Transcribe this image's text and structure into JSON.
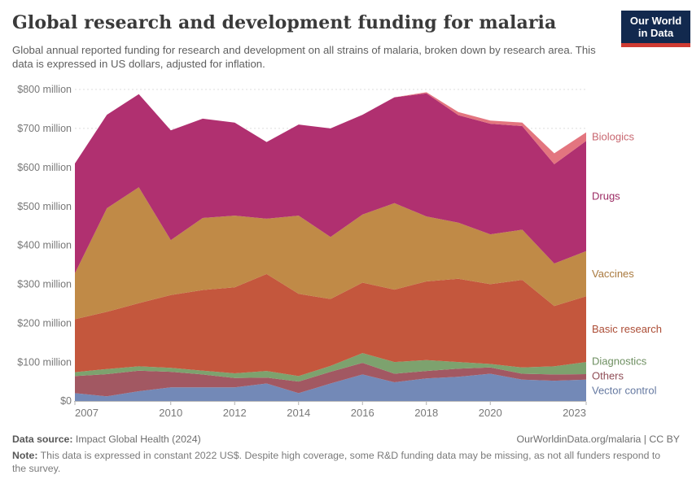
{
  "header": {
    "title": "Global research and development funding for malaria",
    "subtitle": "Global annual reported funding for research and development on all strains of malaria, broken down by research area. This data is expressed in US dollars, adjusted for inflation."
  },
  "logo": {
    "line1": "Our World",
    "line2": "in Data",
    "bg_color": "#12294e",
    "accent_color": "#cf3b32"
  },
  "chart_data": {
    "type": "area",
    "stacked": true,
    "title": "Global research and development funding for malaria",
    "xlabel": "",
    "ylabel": "",
    "xlim": [
      2007,
      2023
    ],
    "ylim": [
      0,
      800
    ],
    "grid": "dashed-horizontal",
    "legend_position": "right-of-plot",
    "x": [
      2007,
      2008,
      2009,
      2010,
      2011,
      2012,
      2013,
      2014,
      2015,
      2016,
      2017,
      2018,
      2019,
      2020,
      2021,
      2022,
      2023
    ],
    "x_ticks": [
      2007,
      2010,
      2012,
      2014,
      2016,
      2018,
      2020,
      2023
    ],
    "y_ticks": [
      {
        "v": 0,
        "label": "$0"
      },
      {
        "v": 100,
        "label": "$100 million"
      },
      {
        "v": 200,
        "label": "$200 million"
      },
      {
        "v": 300,
        "label": "$300 million"
      },
      {
        "v": 400,
        "label": "$400 million"
      },
      {
        "v": 500,
        "label": "$500 million"
      },
      {
        "v": 600,
        "label": "$600 million"
      },
      {
        "v": 700,
        "label": "$700 million"
      },
      {
        "v": 800,
        "label": "$800 million"
      }
    ],
    "unit": "US$ million, constant 2022",
    "series": [
      {
        "name": "Vector control",
        "color": "#7389b7",
        "values": [
          20,
          12,
          25,
          35,
          35,
          35,
          45,
          20,
          45,
          68,
          48,
          58,
          62,
          70,
          55,
          52,
          55
        ]
      },
      {
        "name": "Others",
        "color": "#a25862",
        "values": [
          44,
          57,
          53,
          40,
          33,
          24,
          15,
          30,
          30,
          30,
          22,
          19,
          21,
          16,
          15,
          16,
          14
        ]
      },
      {
        "name": "Diagnostics",
        "color": "#7da26e",
        "values": [
          10,
          13,
          11,
          10,
          10,
          12,
          17,
          14,
          15,
          25,
          30,
          28,
          17,
          9,
          16,
          21,
          31
        ]
      },
      {
        "name": "Basic research",
        "color": "#c4573d",
        "values": [
          136,
          147,
          162,
          187,
          207,
          221,
          249,
          211,
          172,
          181,
          186,
          202,
          214,
          205,
          225,
          155,
          169
        ]
      },
      {
        "name": "Vaccines",
        "color": "#c08a47",
        "values": [
          118,
          266,
          298,
          141,
          185,
          184,
          142,
          201,
          159,
          175,
          222,
          167,
          144,
          128,
          129,
          109,
          116
        ]
      },
      {
        "name": "Drugs",
        "color": "#b03070",
        "values": [
          282,
          240,
          239,
          282,
          255,
          239,
          197,
          234,
          279,
          256,
          272,
          316,
          276,
          284,
          266,
          255,
          283
        ]
      },
      {
        "name": "Biologics",
        "color": "#e3757f",
        "values": [
          0,
          0,
          0,
          0,
          0,
          0,
          0,
          0,
          0,
          0,
          0,
          3,
          8,
          8,
          9,
          28,
          22
        ]
      }
    ]
  },
  "footer": {
    "source_label": "Data source:",
    "source_value": " Impact Global Health (2024)",
    "link": "OurWorldinData.org/malaria | CC BY",
    "note_label": "Note:",
    "note_text": " This data is expressed in constant 2022 US$. Despite high coverage, some R&D funding data may be missing, as not all funders respond to the survey."
  }
}
